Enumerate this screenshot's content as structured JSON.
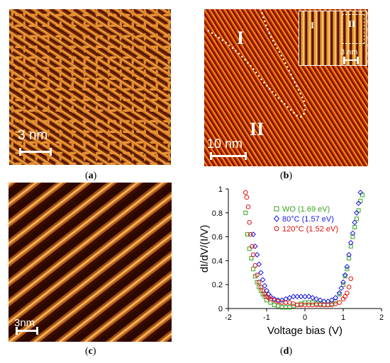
{
  "panels": {
    "a": {
      "label": "a",
      "scale_bar": "3 nm"
    },
    "b": {
      "label": "b",
      "scale_bar": "10 nm",
      "regions": [
        "I",
        "II"
      ],
      "inset": {
        "regions": [
          "I",
          "II"
        ],
        "scale_bar": "3 nm"
      }
    },
    "c": {
      "label": "c",
      "scale_bar": "3nm"
    },
    "d": {
      "label": "d"
    }
  },
  "colors": {
    "stm_dark": "#2a0700",
    "stm_bright": "#f0a948",
    "wo": "#3aa020",
    "c80": "#1a1ae0",
    "c120": "#e01010"
  },
  "chart_data": {
    "type": "scatter",
    "xlabel": "Voltage bias (V)",
    "ylabel": "dI/dV/(I/V)",
    "xlim": [
      -2,
      2
    ],
    "ylim": [
      0,
      1
    ],
    "xticks": [
      -2,
      -1,
      0,
      1,
      2
    ],
    "yticks": [
      0,
      0.2,
      0.4,
      0.6,
      0.8,
      1
    ],
    "grid": false,
    "legend_position": "top-right",
    "series": [
      {
        "name": "WO (1.69 eV)",
        "marker": "square",
        "color": "#3aa020",
        "x": [
          -1.55,
          -1.5,
          -1.45,
          -1.4,
          -1.35,
          -1.3,
          -1.25,
          -1.2,
          -1.15,
          -1.1,
          -1.05,
          -1.0,
          -0.9,
          -0.8,
          -0.7,
          -0.6,
          -0.5,
          -0.4,
          -0.3,
          -0.2,
          -0.1,
          0.0,
          0.1,
          0.2,
          0.3,
          0.4,
          0.5,
          0.6,
          0.7,
          0.8,
          0.9,
          1.0,
          1.05,
          1.1,
          1.15,
          1.2,
          1.25,
          1.3,
          1.35,
          1.4,
          1.45,
          1.5
        ],
        "y": [
          0.8,
          0.62,
          0.5,
          0.42,
          0.33,
          0.27,
          0.22,
          0.18,
          0.15,
          0.12,
          0.1,
          0.07,
          0.05,
          0.03,
          0.02,
          0.01,
          0.01,
          0.01,
          0.02,
          0.03,
          0.04,
          0.05,
          0.05,
          0.05,
          0.04,
          0.04,
          0.03,
          0.03,
          0.04,
          0.06,
          0.12,
          0.2,
          0.27,
          0.33,
          0.42,
          0.52,
          0.6,
          0.68,
          0.75,
          0.82,
          0.9,
          0.95
        ]
      },
      {
        "name": "80°C (1.57 eV)",
        "marker": "diamond",
        "color": "#1a1ae0",
        "x": [
          -1.35,
          -1.3,
          -1.25,
          -1.2,
          -1.15,
          -1.1,
          -1.05,
          -1.0,
          -0.95,
          -0.9,
          -0.8,
          -0.7,
          -0.6,
          -0.5,
          -0.4,
          -0.3,
          -0.2,
          -0.1,
          0.0,
          0.1,
          0.2,
          0.3,
          0.4,
          0.5,
          0.6,
          0.7,
          0.8,
          0.9,
          0.95,
          1.0,
          1.05,
          1.1,
          1.15,
          1.2,
          1.25,
          1.3,
          1.35,
          1.4,
          1.45
        ],
        "y": [
          0.62,
          0.52,
          0.45,
          0.37,
          0.3,
          0.24,
          0.19,
          0.15,
          0.12,
          0.1,
          0.08,
          0.07,
          0.07,
          0.08,
          0.09,
          0.1,
          0.1,
          0.1,
          0.1,
          0.1,
          0.09,
          0.08,
          0.07,
          0.06,
          0.06,
          0.07,
          0.09,
          0.13,
          0.17,
          0.22,
          0.28,
          0.35,
          0.45,
          0.55,
          0.63,
          0.72,
          0.8,
          0.88,
          0.97
        ]
      },
      {
        "name": "120°C (1.52 eV)",
        "marker": "circle",
        "color": "#e01010",
        "x": [
          -1.55,
          -1.52,
          -1.48,
          -1.45,
          -1.42,
          -1.38,
          -1.35,
          -1.3,
          -1.25,
          -1.2,
          -1.15,
          -1.1,
          -1.05,
          -1.0,
          -0.95,
          -0.9,
          -0.8,
          -0.7,
          -0.6,
          -0.5,
          -0.4,
          -0.3,
          -0.2,
          -0.1,
          0.0,
          0.1,
          0.2,
          0.3,
          0.4,
          0.5,
          0.6,
          0.7,
          0.8,
          0.9,
          1.0,
          1.05,
          1.1,
          1.15,
          1.2
        ],
        "y": [
          0.97,
          0.93,
          0.85,
          0.72,
          0.62,
          0.52,
          0.45,
          0.36,
          0.28,
          0.22,
          0.18,
          0.15,
          0.12,
          0.1,
          0.09,
          0.08,
          0.07,
          0.06,
          0.05,
          0.05,
          0.05,
          0.04,
          0.03,
          0.03,
          0.03,
          0.03,
          0.03,
          0.03,
          0.03,
          0.03,
          0.03,
          0.03,
          0.04,
          0.05,
          0.08,
          0.1,
          0.13,
          0.18,
          0.25
        ]
      }
    ]
  }
}
